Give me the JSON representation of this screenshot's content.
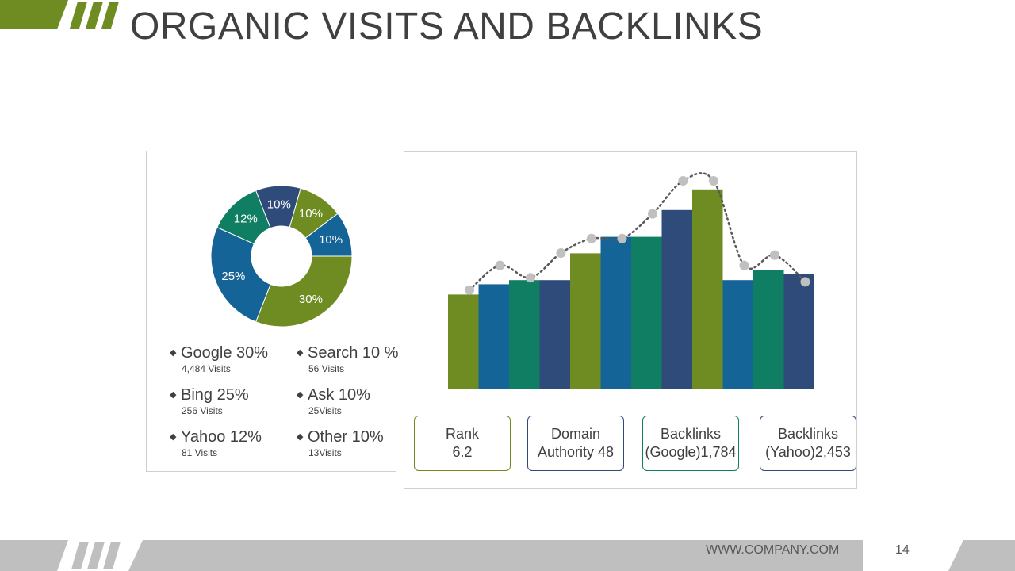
{
  "slide": {
    "title": "ORGANIC VISITS AND BACKLINKS",
    "footer_website": "WWW.COMPANY.COM",
    "page_number": "14"
  },
  "colors": {
    "green": "#6f8c22",
    "blue": "#156497",
    "teal": "#0f7e62",
    "navy": "#2f4b7a",
    "marker": "#c0c0c0",
    "footer_gray": "#bfbfbf"
  },
  "legend": [
    {
      "label": "Google 30%",
      "sub": "4,484 Visits"
    },
    {
      "label": "Search 10 %",
      "sub": "56 Visits"
    },
    {
      "label": "Bing 25%",
      "sub": "256 Visits"
    },
    {
      "label": "Ask 10%",
      "sub": "25Visits"
    },
    {
      "label": "Yahoo 12%",
      "sub": "81 Visits"
    },
    {
      "label": "Other 10%",
      "sub": "13Visits"
    }
  ],
  "metrics": [
    {
      "line1": "Rank",
      "line2": "6.2",
      "color": "#6f8c22"
    },
    {
      "line1": "Domain",
      "line2": "Authority 48",
      "color": "#2f4b7a"
    },
    {
      "line1": "Backlinks",
      "line2": "(Google)1,784",
      "color": "#0f7e62"
    },
    {
      "line1": "Backlinks",
      "line2": "(Yahoo)2,453",
      "color": "#2f4b7a"
    }
  ],
  "chart_data": [
    {
      "type": "pie",
      "slices": [
        {
          "label": "30%",
          "value": 30,
          "color": "#6f8c22"
        },
        {
          "label": "25%",
          "value": 25,
          "color": "#156497"
        },
        {
          "label": "12%",
          "value": 12,
          "color": "#0f7e62"
        },
        {
          "label": "10%",
          "value": 10,
          "color": "#2f4b7a"
        },
        {
          "label": "10%",
          "value": 10,
          "color": "#6f8c22"
        },
        {
          "label": "10%",
          "value": 10,
          "color": "#156497"
        }
      ]
    },
    {
      "type": "bar",
      "bars": [
        {
          "value": 46,
          "color": "#6f8c22"
        },
        {
          "value": 51,
          "color": "#156497"
        },
        {
          "value": 53,
          "color": "#0f7e62"
        },
        {
          "value": 53,
          "color": "#2f4b7a"
        },
        {
          "value": 66,
          "color": "#6f8c22"
        },
        {
          "value": 74,
          "color": "#156497"
        },
        {
          "value": 74,
          "color": "#0f7e62"
        },
        {
          "value": 87,
          "color": "#2f4b7a"
        },
        {
          "value": 97,
          "color": "#6f8c22"
        },
        {
          "value": 53,
          "color": "#156497"
        },
        {
          "value": 58,
          "color": "#0f7e62"
        },
        {
          "value": 56,
          "color": "#2f4b7a"
        }
      ],
      "line_points": [
        47,
        59,
        53,
        65,
        72,
        72,
        84,
        100,
        100,
        59,
        64,
        51
      ],
      "ylim": [
        0,
        100
      ]
    }
  ]
}
